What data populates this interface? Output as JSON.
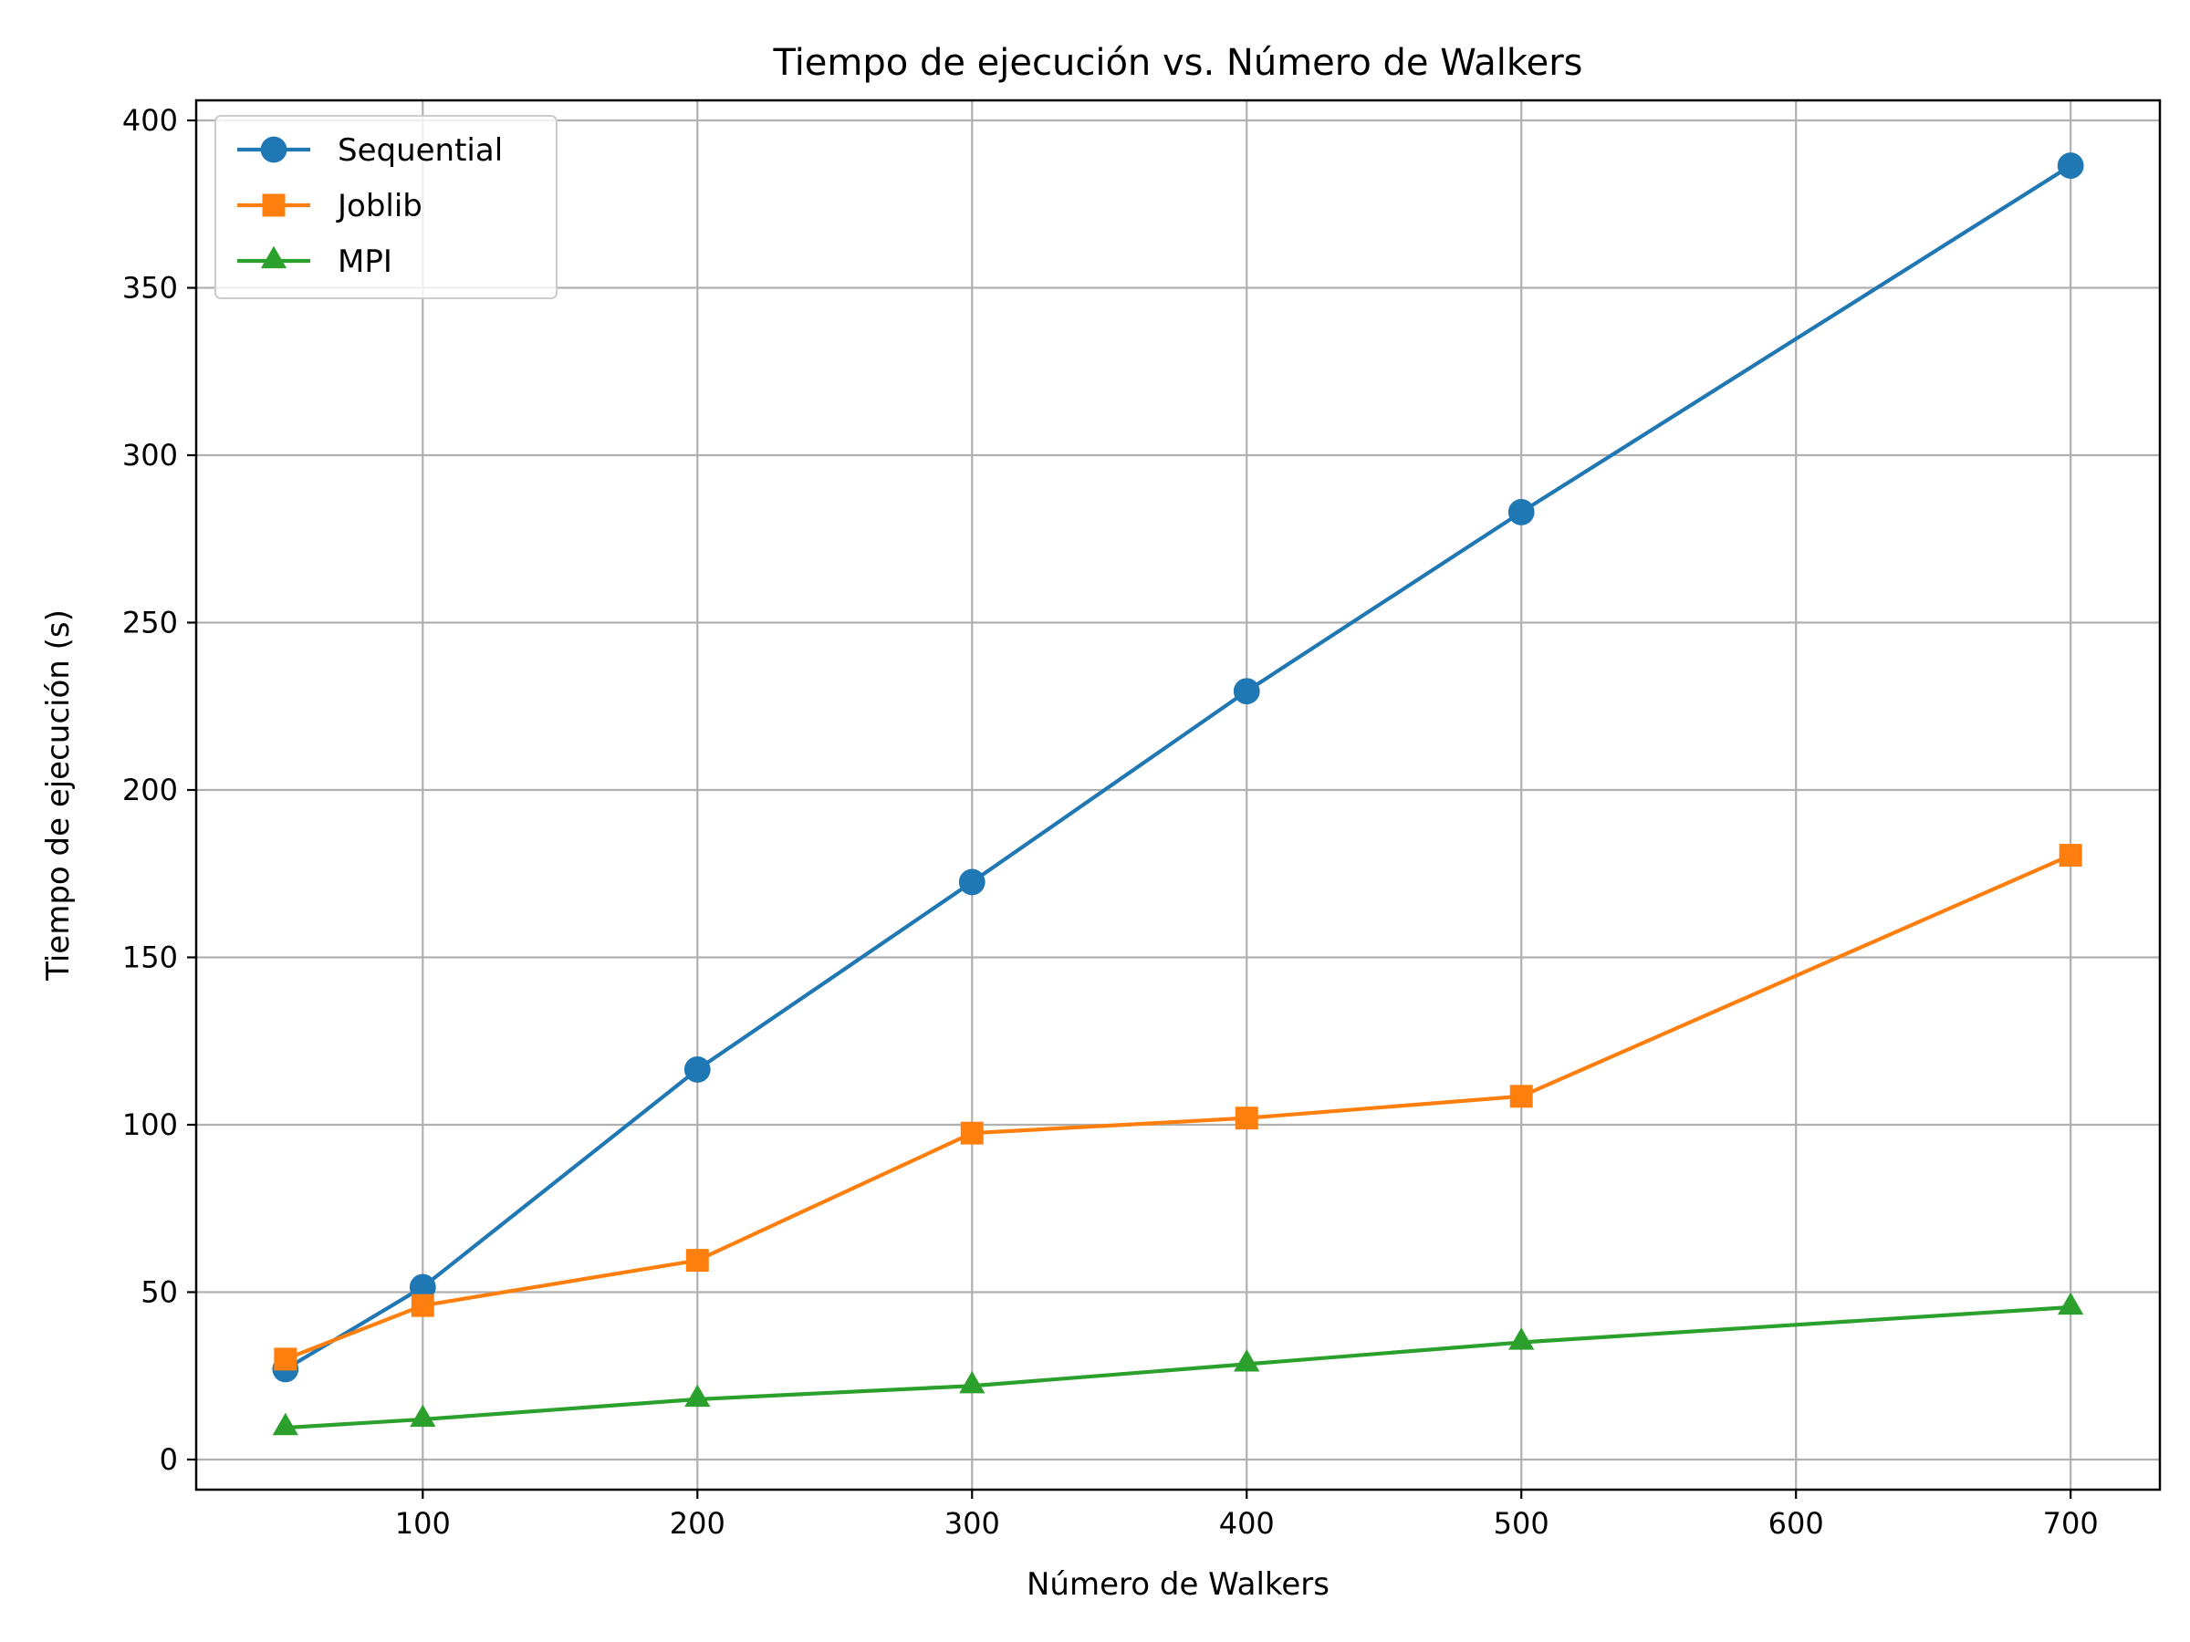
{
  "chart_data": {
    "type": "line",
    "title": "Tiempo de ejecución vs. Número de Walkers",
    "xlabel": "Número de Walkers",
    "ylabel": "Tiempo de ejecución (s)",
    "x": [
      50,
      100,
      200,
      300,
      400,
      500,
      700
    ],
    "xlim": [
      17.5,
      732.5
    ],
    "ylim": [
      -9.0,
      406.0
    ],
    "xticks": [
      100,
      200,
      300,
      400,
      500,
      600,
      700
    ],
    "yticks": [
      0,
      50,
      100,
      150,
      200,
      250,
      300,
      350,
      400
    ],
    "grid": true,
    "legend_position": "upper-left",
    "series": [
      {
        "name": "Sequential",
        "marker": "circle",
        "color": "#1f77b4",
        "values": [
          27.0,
          51.5,
          116.5,
          172.5,
          229.5,
          283.0,
          386.5
        ]
      },
      {
        "name": "Joblib",
        "marker": "square",
        "color": "#ff7f0e",
        "values": [
          30.0,
          46.0,
          59.5,
          97.5,
          102.0,
          108.5,
          180.5
        ]
      },
      {
        "name": "MPI",
        "marker": "triangle",
        "color": "#2ca02c",
        "values": [
          9.5,
          12.0,
          18.0,
          22.0,
          28.5,
          35.0,
          45.5
        ]
      }
    ]
  }
}
